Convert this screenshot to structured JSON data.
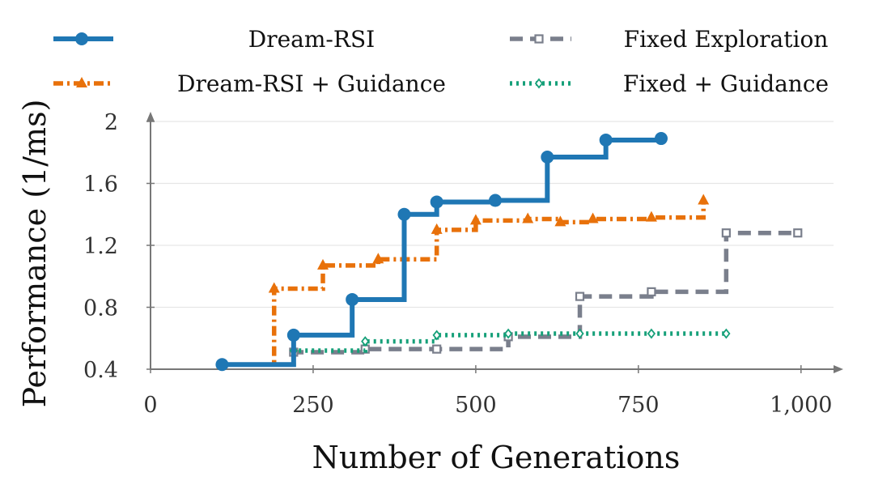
{
  "chart_data": {
    "type": "line",
    "step": true,
    "xlabel": "Number of Generations",
    "ylabel": "Performance (1/ms)",
    "xlim": [
      0,
      1050
    ],
    "ylim": [
      0.4,
      2.0
    ],
    "xticks": [
      0,
      250,
      500,
      750,
      1000
    ],
    "xtick_labels": [
      "0",
      "250",
      "500",
      "750",
      "1,000"
    ],
    "yticks": [
      0.4,
      0.8,
      1.2,
      1.6,
      2.0
    ],
    "ytick_labels": [
      "0.4",
      "0.8",
      "1.2",
      "1.6",
      "2"
    ],
    "grid": true,
    "legend_position": "top",
    "series": [
      {
        "name": "Dream-RSI",
        "color": "#1f77b4",
        "line": "solid",
        "marker": "circle",
        "x": [
          110,
          220,
          310,
          390,
          440,
          530,
          610,
          700,
          785
        ],
        "y": [
          0.43,
          0.62,
          0.85,
          1.4,
          1.48,
          1.49,
          1.77,
          1.88,
          1.89
        ]
      },
      {
        "name": "Dream-RSI + Guidance",
        "color": "#e8710a",
        "line": "dashdot",
        "marker": "triangle",
        "x": [
          110,
          190,
          265,
          350,
          440,
          500,
          580,
          630,
          680,
          770,
          850
        ],
        "y": [
          0.43,
          0.92,
          1.07,
          1.11,
          1.3,
          1.36,
          1.37,
          1.35,
          1.37,
          1.38,
          1.49
        ]
      },
      {
        "name": "Fixed Exploration",
        "color": "#7a7f8c",
        "line": "dashed",
        "marker": "square",
        "x": [
          110,
          220,
          330,
          440,
          550,
          660,
          770,
          885,
          995
        ],
        "y": [
          0.43,
          0.51,
          0.53,
          0.53,
          0.61,
          0.87,
          0.9,
          1.28,
          1.28
        ]
      },
      {
        "name": "Fixed + Guidance",
        "color": "#16a079",
        "line": "dotted",
        "marker": "diamond",
        "x": [
          110,
          220,
          330,
          440,
          550,
          660,
          770,
          885
        ],
        "y": [
          0.43,
          0.52,
          0.58,
          0.62,
          0.63,
          0.63,
          0.63,
          0.63
        ]
      }
    ]
  }
}
